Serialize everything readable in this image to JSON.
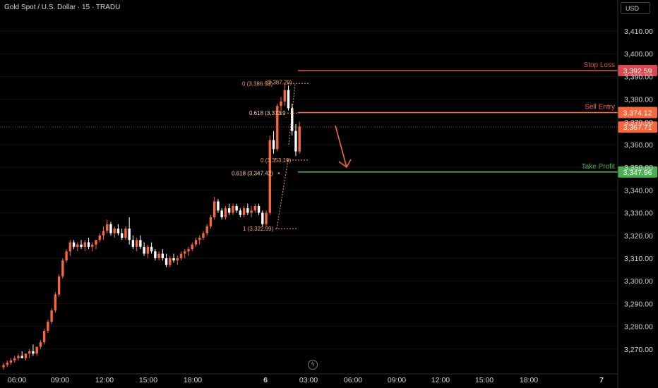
{
  "header": {
    "symbol_title": "Gold Spot / U.S. Dollar · 15 · TRADU",
    "currency": "USD"
  },
  "colors": {
    "bull": "#f7673d",
    "bear": "#ffffff",
    "stop": "#d84a4f",
    "entry": "#f7673d",
    "tp": "#4caf50",
    "fib": "#f7a15a",
    "grid": "#131313",
    "price_line": "#f7673d"
  },
  "icons": {
    "bolt": "lightning-bolt-icon"
  },
  "chart_data": {
    "type": "candlestick",
    "ylim": [
      3258,
      3422
    ],
    "y_ticks": [
      3270,
      3280,
      3290,
      3300,
      3310,
      3320,
      3330,
      3340,
      3350,
      3360,
      3370,
      3380,
      3390,
      3400,
      3410
    ],
    "y_tick_labels": [
      "3,270.00",
      "3,280.00",
      "3,290.00",
      "3,300.00",
      "3,310.00",
      "3,320.00",
      "3,330.00",
      "3,340.00",
      "3,350.00",
      "3,360.00",
      "3,370.00",
      "3,380.00",
      "3,390.00",
      "3,400.00",
      "3,410.00"
    ],
    "x_labels": [
      "06:00",
      "09:00",
      "12:00",
      "15:00",
      "18:00",
      "6",
      "03:00",
      "06:00",
      "09:00",
      "12:00",
      "15:00",
      "18:00",
      "7"
    ],
    "levels": [
      {
        "name": "Stop Loss",
        "value": 3392.59,
        "tag": "3,392.59"
      },
      {
        "name": "Sell Entry",
        "value": 3374.12,
        "tag": "3,374.12"
      },
      {
        "name": "Take Profit",
        "value": 3347.96,
        "tag": "3,347.96"
      }
    ],
    "current_price": {
      "value": 3367.71,
      "tag": "3,367.71"
    },
    "fib_upper": [
      {
        "label": "0 (3,386.93)",
        "value": 3386.93
      },
      {
        "label": "(3,387.29)",
        "value": 3387.29
      },
      {
        "label": "0.618 (3,373.9",
        "value": 3373.9
      }
    ],
    "fib_lower": [
      {
        "label": "0 (3,353.19)",
        "value": 3353.19
      },
      {
        "label": "0.618 (3,347.42)",
        "value": 3347.42
      },
      {
        "label": "1 (3,322.99)",
        "value": 3322.99
      }
    ],
    "candles": [
      [
        3262,
        3264,
        3261,
        3263
      ],
      [
        3263,
        3265,
        3262,
        3264
      ],
      [
        3264,
        3266,
        3263,
        3265
      ],
      [
        3265,
        3267,
        3264,
        3266
      ],
      [
        3266,
        3268,
        3265,
        3267
      ],
      [
        3267,
        3269,
        3266,
        3266
      ],
      [
        3266,
        3268,
        3265,
        3268
      ],
      [
        3268,
        3270,
        3266,
        3269
      ],
      [
        3269,
        3272,
        3267,
        3268
      ],
      [
        3268,
        3271,
        3267,
        3271
      ],
      [
        3271,
        3274,
        3270,
        3273
      ],
      [
        3273,
        3279,
        3272,
        3278
      ],
      [
        3278,
        3283,
        3277,
        3282
      ],
      [
        3282,
        3288,
        3281,
        3287
      ],
      [
        3287,
        3295,
        3286,
        3294
      ],
      [
        3294,
        3303,
        3293,
        3302
      ],
      [
        3302,
        3310,
        3301,
        3309
      ],
      [
        3309,
        3314,
        3308,
        3313
      ],
      [
        3313,
        3318,
        3311,
        3317
      ],
      [
        3317,
        3318,
        3314,
        3315
      ],
      [
        3315,
        3317,
        3313,
        3316
      ],
      [
        3316,
        3318,
        3314,
        3315
      ],
      [
        3315,
        3318,
        3313,
        3317
      ],
      [
        3317,
        3319,
        3314,
        3315
      ],
      [
        3315,
        3317,
        3313,
        3316
      ],
      [
        3316,
        3318,
        3314,
        3318
      ],
      [
        3318,
        3321,
        3317,
        3320
      ],
      [
        3320,
        3324,
        3318,
        3322
      ],
      [
        3322,
        3327,
        3321,
        3325
      ],
      [
        3325,
        3326,
        3320,
        3321
      ],
      [
        3321,
        3324,
        3319,
        3323
      ],
      [
        3323,
        3325,
        3320,
        3321
      ],
      [
        3321,
        3323,
        3318,
        3319
      ],
      [
        3319,
        3324,
        3318,
        3323
      ],
      [
        3323,
        3328,
        3316,
        3318
      ],
      [
        3318,
        3320,
        3314,
        3315
      ],
      [
        3315,
        3319,
        3313,
        3318
      ],
      [
        3318,
        3320,
        3314,
        3315
      ],
      [
        3315,
        3317,
        3311,
        3312
      ],
      [
        3312,
        3316,
        3310,
        3315
      ],
      [
        3315,
        3317,
        3312,
        3313
      ],
      [
        3313,
        3314,
        3309,
        3310
      ],
      [
        3310,
        3313,
        3309,
        3312
      ],
      [
        3312,
        3314,
        3309,
        3310
      ],
      [
        3310,
        3312,
        3306,
        3307
      ],
      [
        3307,
        3311,
        3306,
        3310
      ],
      [
        3310,
        3312,
        3308,
        3309
      ],
      [
        3309,
        3311,
        3307,
        3310
      ],
      [
        3310,
        3313,
        3309,
        3312
      ],
      [
        3312,
        3314,
        3310,
        3313
      ],
      [
        3313,
        3315,
        3311,
        3314
      ],
      [
        3314,
        3317,
        3313,
        3316
      ],
      [
        3316,
        3319,
        3315,
        3318
      ],
      [
        3318,
        3320,
        3316,
        3319
      ],
      [
        3319,
        3322,
        3318,
        3321
      ],
      [
        3321,
        3325,
        3320,
        3324
      ],
      [
        3324,
        3329,
        3323,
        3328
      ],
      [
        3328,
        3337,
        3327,
        3335
      ],
      [
        3335,
        3336,
        3330,
        3331
      ],
      [
        3331,
        3332,
        3327,
        3328
      ],
      [
        3328,
        3333,
        3327,
        3332
      ],
      [
        3332,
        3334,
        3329,
        3330
      ],
      [
        3330,
        3334,
        3329,
        3333
      ],
      [
        3333,
        3334,
        3330,
        3331
      ],
      [
        3331,
        3332,
        3328,
        3329
      ],
      [
        3329,
        3333,
        3328,
        3332
      ],
      [
        3332,
        3334,
        3329,
        3330
      ],
      [
        3330,
        3333,
        3328,
        3331
      ],
      [
        3331,
        3334,
        3330,
        3333
      ],
      [
        3333,
        3334,
        3329,
        3330
      ],
      [
        3330,
        3331,
        3324,
        3325
      ],
      [
        3325,
        3331,
        3324,
        3330
      ],
      [
        3330,
        3364,
        3329,
        3362
      ],
      [
        3362,
        3366,
        3356,
        3358
      ],
      [
        3358,
        3378,
        3357,
        3377
      ],
      [
        3377,
        3381,
        3373,
        3379
      ],
      [
        3379,
        3387,
        3377,
        3384
      ],
      [
        3384,
        3386,
        3375,
        3376
      ],
      [
        3376,
        3378,
        3364,
        3366
      ],
      [
        3366,
        3369,
        3355,
        3357
      ],
      [
        3357,
        3370,
        3356,
        3368
      ]
    ]
  }
}
